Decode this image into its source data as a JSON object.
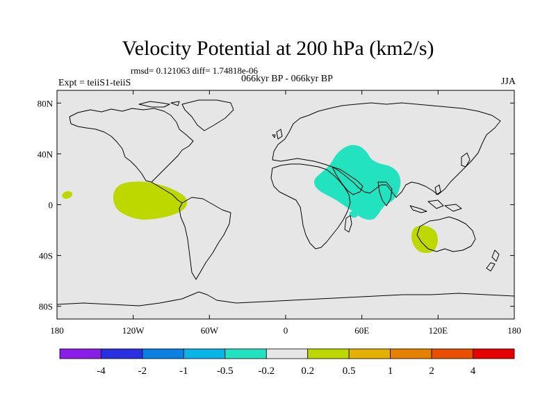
{
  "header": {
    "title": "Velocity Potential at 200 hPa (km2/s)",
    "stats": "rmsd= 0.121063 diff= 1.74818e-06",
    "experiment": "Expt = teiiS1-teiiS",
    "period": "066kyr BP - 066kyr BP",
    "season": "JJA"
  },
  "map": {
    "projection": "cylindrical equidistant",
    "lat_range": [
      -90,
      90
    ],
    "lon_range": [
      -180,
      180
    ],
    "ocean_land_fill": "#e6e6e6",
    "coastline_color": "#000000",
    "lat_ticks": [
      {
        "value": 80,
        "label": "80N"
      },
      {
        "value": 40,
        "label": "40N"
      },
      {
        "value": 0,
        "label": "0"
      },
      {
        "value": -40,
        "label": "40S"
      },
      {
        "value": -80,
        "label": "80S"
      }
    ],
    "lon_ticks": [
      {
        "value": -180,
        "label": "180"
      },
      {
        "value": -120,
        "label": "120W"
      },
      {
        "value": -60,
        "label": "60W"
      },
      {
        "value": 0,
        "label": "0"
      },
      {
        "value": 60,
        "label": "60E"
      },
      {
        "value": 120,
        "label": "120E"
      },
      {
        "value": 180,
        "label": "180"
      }
    ],
    "anomaly_regions": [
      {
        "name": "central-east-pacific",
        "color": "#bcd800",
        "sign": "positive"
      },
      {
        "name": "tiny-pacific-west",
        "color": "#bcd800",
        "sign": "positive"
      },
      {
        "name": "west-australia",
        "color": "#bcd800",
        "sign": "positive"
      },
      {
        "name": "middle-east-africa",
        "color": "#23e2c0",
        "sign": "negative"
      },
      {
        "name": "small-cyan",
        "color": "#23e2c0",
        "sign": "negative"
      }
    ]
  },
  "colorbar": {
    "colors": [
      "#8a1ee6",
      "#2830e0",
      "#0a80e0",
      "#0ab4e6",
      "#23e2c0",
      "#e6e6e6",
      "#bcd800",
      "#e6b000",
      "#e68000",
      "#e65000",
      "#e60000"
    ],
    "labels": [
      "-4",
      "-2",
      "-1",
      "-0.5",
      "-0.2",
      "0.2",
      "0.5",
      "1",
      "2",
      "4"
    ]
  }
}
